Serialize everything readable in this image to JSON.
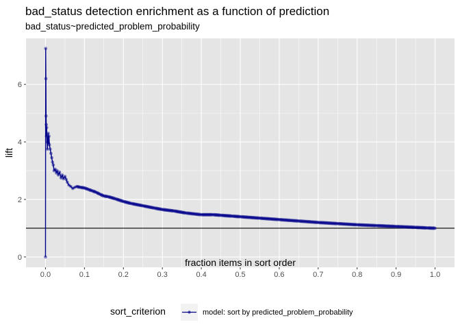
{
  "chart_data": {
    "type": "line",
    "title": "bad_status detection enrichment as a function of prediction",
    "subtitle": "bad_status~predicted_problem_probability",
    "xlabel": "fraction items in sort order",
    "ylabel": "lift",
    "xlim": [
      -0.05,
      1.05
    ],
    "ylim": [
      -0.36,
      7.6
    ],
    "x_ticks": [
      0.0,
      0.1,
      0.2,
      0.3,
      0.4,
      0.5,
      0.6,
      0.7,
      0.8,
      0.9,
      1.0
    ],
    "x_tick_labels": [
      "0.0",
      "0.1",
      "0.2",
      "0.3",
      "0.4",
      "0.5",
      "0.6",
      "0.7",
      "0.8",
      "0.9",
      "1.0"
    ],
    "y_ticks": [
      0,
      2,
      4,
      6
    ],
    "y_tick_labels": [
      "0",
      "2",
      "4",
      "6"
    ],
    "reference_line": {
      "y": 1,
      "color": "#000000"
    },
    "grid": true,
    "panel_background": "#e5e5e5",
    "grid_color": "#ffffff",
    "legend": {
      "title": "sort_criterion",
      "position": "bottom",
      "entries": [
        "model: sort by predicted_problem_probability"
      ]
    },
    "series": [
      {
        "name": "model: sort by predicted_problem_probability",
        "color": "#00008b",
        "x": [
          0,
          0.0005,
          0.001,
          0.0015,
          0.002,
          0.0025,
          0.003,
          0.004,
          0.005,
          0.006,
          0.007,
          0.008,
          0.009,
          0.01,
          0.012,
          0.014,
          0.016,
          0.018,
          0.02,
          0.022,
          0.025,
          0.028,
          0.03,
          0.033,
          0.036,
          0.04,
          0.043,
          0.046,
          0.05,
          0.053,
          0.056,
          0.06,
          0.065,
          0.07,
          0.075,
          0.08,
          0.09,
          0.1,
          0.11,
          0.12,
          0.13,
          0.14,
          0.15,
          0.16,
          0.18,
          0.2,
          0.22,
          0.25,
          0.28,
          0.3,
          0.33,
          0.36,
          0.4,
          0.43,
          0.45,
          0.48,
          0.5,
          0.55,
          0.6,
          0.65,
          0.7,
          0.75,
          0.8,
          0.85,
          0.9,
          0.95,
          0.98,
          1.0
        ],
        "y": [
          0.0,
          7.25,
          6.2,
          4.9,
          4.6,
          4.2,
          4.5,
          4.0,
          3.75,
          4.1,
          4.3,
          3.95,
          4.2,
          3.9,
          3.75,
          3.6,
          3.45,
          3.3,
          3.2,
          3.0,
          3.05,
          2.92,
          3.0,
          2.85,
          2.95,
          2.75,
          2.85,
          2.72,
          2.8,
          2.7,
          2.6,
          2.5,
          2.45,
          2.38,
          2.42,
          2.45,
          2.42,
          2.4,
          2.35,
          2.3,
          2.25,
          2.18,
          2.12,
          2.1,
          2.02,
          1.93,
          1.86,
          1.78,
          1.7,
          1.65,
          1.6,
          1.53,
          1.47,
          1.47,
          1.45,
          1.42,
          1.4,
          1.35,
          1.3,
          1.25,
          1.2,
          1.16,
          1.12,
          1.09,
          1.06,
          1.03,
          1.01,
          1.0
        ]
      }
    ]
  }
}
